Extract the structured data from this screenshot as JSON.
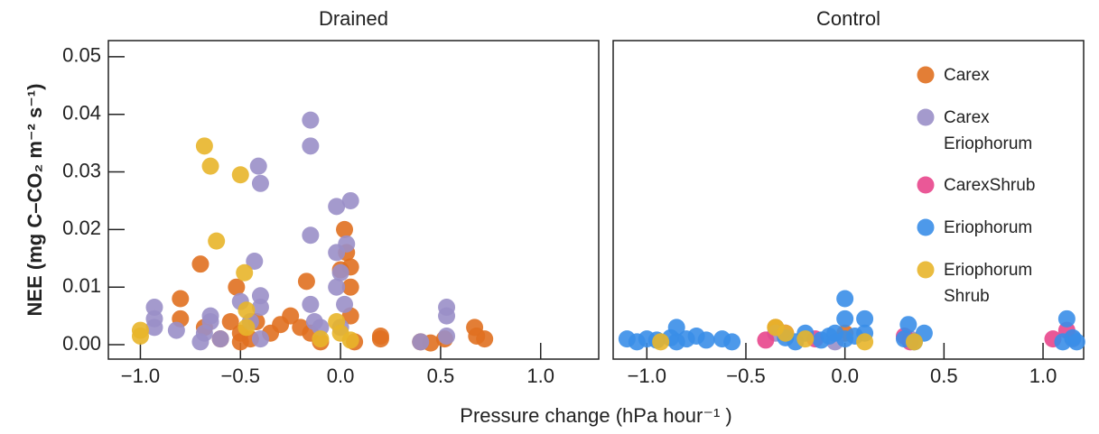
{
  "chart_data": [
    {
      "type": "scatter",
      "title": "Drained",
      "y_label": "NEE (mg C–CO₂ m⁻² s⁻¹)",
      "x_label": "Pressure change (hPa hour⁻¹ )",
      "xlim": [
        -1.16,
        1.29
      ],
      "ylim": [
        -0.0025,
        0.0528
      ],
      "xticks": [
        {
          "value": -1.0,
          "label": "−1.0"
        },
        {
          "value": -0.5,
          "label": "−0.5"
        },
        {
          "value": 0.0,
          "label": "0.0"
        },
        {
          "value": 0.5,
          "label": "0.5"
        },
        {
          "value": 1.0,
          "label": "1.0"
        }
      ],
      "yticks": [
        {
          "value": 0.0,
          "label": "0.00"
        },
        {
          "value": 0.01,
          "label": "0.01"
        },
        {
          "value": 0.02,
          "label": "0.02"
        },
        {
          "value": 0.03,
          "label": "0.03"
        },
        {
          "value": 0.04,
          "label": "0.04"
        },
        {
          "value": 0.05,
          "label": "0.05"
        }
      ],
      "series": [
        {
          "name": "Carex",
          "color": "#e07020",
          "x": [
            -0.8,
            -0.8,
            -0.7,
            -0.68,
            -0.6,
            -0.55,
            -0.52,
            -0.5,
            -0.5,
            -0.45,
            -0.42,
            -0.35,
            -0.3,
            -0.25,
            -0.2,
            -0.17,
            -0.15,
            -0.1,
            0.0,
            0.02,
            0.03,
            0.05,
            0.05,
            0.05,
            0.07,
            0.2,
            0.2,
            0.4,
            0.45,
            0.52,
            0.67,
            0.68,
            0.72
          ],
          "y": [
            0.008,
            0.0045,
            0.014,
            0.003,
            0.001,
            0.004,
            0.01,
            0.002,
            0.0005,
            0.001,
            0.004,
            0.002,
            0.0035,
            0.005,
            0.003,
            0.011,
            0.002,
            0.0005,
            0.013,
            0.02,
            0.016,
            0.0135,
            0.01,
            0.005,
            0.0005,
            0.0015,
            0.001,
            0.0005,
            0.0003,
            0.001,
            0.003,
            0.0015,
            0.001
          ]
        },
        {
          "name": "Carex Eriophorum",
          "color": "#9a8fc8",
          "x": [
            -0.93,
            -0.93,
            -0.93,
            -0.82,
            -0.7,
            -0.68,
            -0.65,
            -0.65,
            -0.6,
            -0.5,
            -0.45,
            -0.43,
            -0.41,
            -0.4,
            -0.4,
            -0.4,
            -0.4,
            -0.15,
            -0.15,
            -0.15,
            -0.15,
            -0.13,
            -0.1,
            -0.02,
            -0.02,
            -0.02,
            0.0,
            0.02,
            0.03,
            0.05,
            0.0,
            0.4,
            0.53,
            0.53,
            0.53
          ],
          "y": [
            0.0065,
            0.0045,
            0.003,
            0.0025,
            0.0005,
            0.002,
            0.004,
            0.005,
            0.001,
            0.0075,
            0.004,
            0.0145,
            0.031,
            0.028,
            0.0085,
            0.0065,
            0.001,
            0.039,
            0.0345,
            0.019,
            0.007,
            0.004,
            0.003,
            0.024,
            0.016,
            0.01,
            0.0125,
            0.007,
            0.0175,
            0.025,
            0.003,
            0.0005,
            0.0065,
            0.005,
            0.0015
          ]
        },
        {
          "name": "Eriophorum Shrub",
          "color": "#e8b52a",
          "x": [
            -1.0,
            -1.0,
            -0.68,
            -0.65,
            -0.62,
            -0.5,
            -0.48,
            -0.47,
            -0.47,
            -0.02,
            0.0,
            -0.1,
            0.05
          ],
          "y": [
            0.0025,
            0.0015,
            0.0345,
            0.031,
            0.018,
            0.0295,
            0.0125,
            0.006,
            0.003,
            0.004,
            0.002,
            0.001,
            0.0008
          ]
        }
      ]
    },
    {
      "type": "scatter",
      "title": "Control",
      "legend": "upper right",
      "xlim": [
        -1.17,
        1.205
      ],
      "ylim": [
        -0.0025,
        0.0528
      ],
      "xticks": [
        {
          "value": -1.0,
          "label": "−1.0"
        },
        {
          "value": -0.5,
          "label": "−0.5"
        },
        {
          "value": 0.0,
          "label": "0.0"
        },
        {
          "value": 0.5,
          "label": "0.5"
        },
        {
          "value": 1.0,
          "label": "1.0"
        }
      ],
      "series": [
        {
          "name": "Carex",
          "color": "#e07020",
          "x": [
            -0.35,
            0.0
          ],
          "y": [
            0.003,
            0.002
          ]
        },
        {
          "name": "Carex Eriophorum",
          "color": "#9a8fc8",
          "x": [
            -0.35,
            -0.05,
            0.33,
            1.15
          ],
          "y": [
            0.002,
            0.0005,
            0.001,
            0.001
          ]
        },
        {
          "name": "CarexShrub",
          "color": "#e8468c",
          "x": [
            -0.4,
            -0.3,
            -0.15,
            0.3,
            0.33,
            1.05,
            1.12
          ],
          "y": [
            0.0008,
            0.002,
            0.001,
            0.0015,
            0.0005,
            0.001,
            0.0025
          ]
        },
        {
          "name": "Eriophorum",
          "color": "#3a8ee8",
          "x": [
            -1.1,
            -1.05,
            -1.0,
            -0.95,
            -0.88,
            -0.85,
            -0.8,
            -0.75,
            -0.7,
            -0.62,
            -0.57,
            -0.3,
            -0.25,
            -0.2,
            -0.12,
            -0.08,
            -0.05,
            0.0,
            0.0,
            0.0,
            0.05,
            0.1,
            0.1,
            0.3,
            0.32,
            0.35,
            0.4,
            1.1,
            1.12,
            1.15,
            1.17,
            -0.85
          ],
          "y": [
            0.001,
            0.0005,
            0.001,
            0.0008,
            0.0012,
            0.0005,
            0.001,
            0.0015,
            0.0008,
            0.001,
            0.0005,
            0.0012,
            0.0005,
            0.002,
            0.0008,
            0.0015,
            0.002,
            0.008,
            0.0045,
            0.001,
            0.0015,
            0.0045,
            0.002,
            0.001,
            0.0035,
            0.0005,
            0.002,
            0.0005,
            0.0045,
            0.0012,
            0.0005,
            0.003
          ]
        },
        {
          "name": "Eriophorum Shrub",
          "color": "#e8b52a",
          "x": [
            -0.93,
            -0.35,
            -0.3,
            -0.2,
            0.1,
            0.35
          ],
          "y": [
            0.0005,
            0.003,
            0.002,
            0.001,
            0.0005,
            0.0005
          ]
        }
      ]
    }
  ]
}
